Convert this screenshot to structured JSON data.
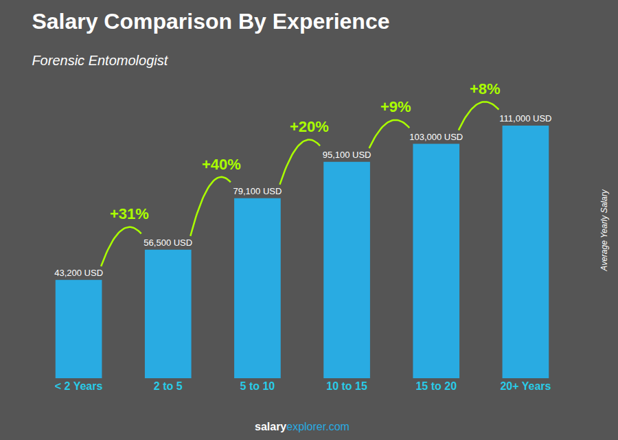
{
  "chart_data": {
    "type": "bar",
    "title": "Salary Comparison By Experience",
    "subtitle": "Forensic Entomologist",
    "categories": [
      "< 2 Years",
      "2 to 5",
      "5 to 10",
      "10 to 15",
      "15 to 20",
      "20+ Years"
    ],
    "values": [
      43200,
      56500,
      79100,
      95100,
      103000,
      111000
    ],
    "value_labels": [
      "43,200 USD",
      "56,500 USD",
      "79,100 USD",
      "95,100 USD",
      "103,000 USD",
      "111,000 USD"
    ],
    "data_labels": true,
    "color": "#29ABE2",
    "ylim": [
      0,
      130000
    ],
    "ylabel": "Average Yearly Salary",
    "annotations": [
      "+31%",
      "+40%",
      "+20%",
      "+9%",
      "+8%"
    ],
    "footer": [
      "salary",
      "explorer.com"
    ],
    "grid": false,
    "tick_labels": "x"
  }
}
